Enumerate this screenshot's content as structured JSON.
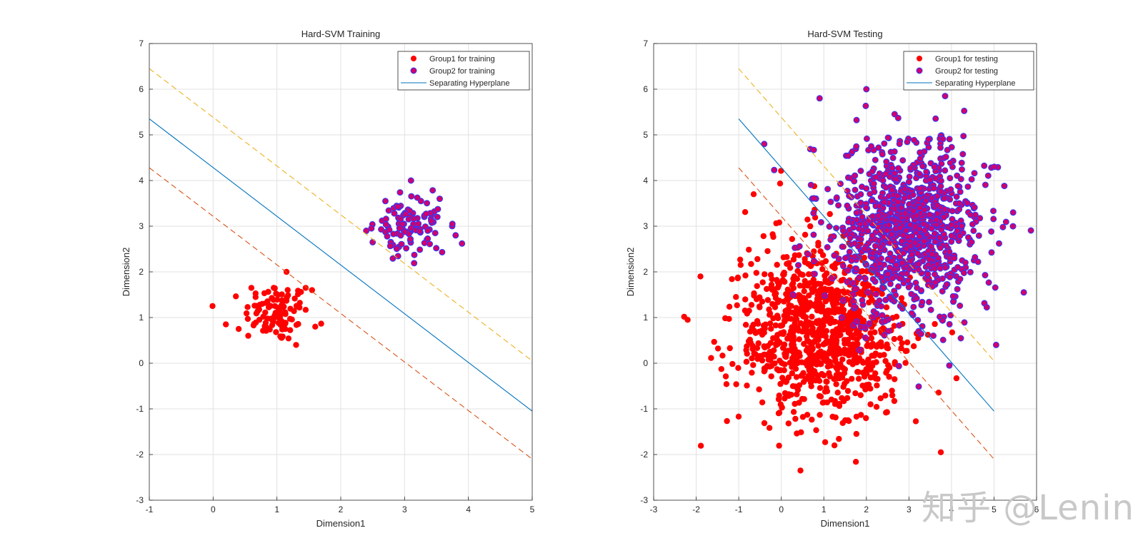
{
  "watermark": "知乎 @Lenin",
  "colors": {
    "group1": "#ff0000",
    "group2_fill": "#d1006e",
    "group2_edge": "#2a3cff",
    "hyperplane": "#0072bd",
    "margin_upper": "#edb120",
    "margin_lower": "#d95319",
    "grid": "#e1e1e1",
    "axis": "#262626"
  },
  "chart_data": [
    {
      "type": "scatter",
      "title": "Hard-SVM Training",
      "xlabel": "Dimension1",
      "ylabel": "Dimension2",
      "xlim": [
        -1,
        5
      ],
      "ylim": [
        -3,
        7
      ],
      "xticks": [
        -1,
        0,
        1,
        2,
        3,
        4,
        5
      ],
      "yticks": [
        -3,
        -2,
        -1,
        0,
        1,
        2,
        3,
        4,
        5,
        6,
        7
      ],
      "grid": true,
      "legend_position": "top-right",
      "legend": [
        "Group1 for training",
        "Group2 for training",
        "Separating Hyperplane"
      ],
      "series": [
        {
          "name": "Group1 for training",
          "kind": "points",
          "center": [
            1.0,
            1.1
          ],
          "spread": [
            0.25,
            0.32
          ],
          "count": 100,
          "extra_points": [
            [
              0.2,
              0.85
            ],
            [
              0.4,
              0.75
            ],
            [
              0.6,
              1.65
            ],
            [
              1.15,
              2.0
            ],
            [
              1.3,
              0.4
            ],
            [
              1.55,
              1.6
            ],
            [
              1.6,
              0.8
            ],
            [
              0.55,
              0.6
            ],
            [
              1.45,
              1.65
            ],
            [
              0.95,
              1.65
            ]
          ]
        },
        {
          "name": "Group2 for training",
          "kind": "points",
          "center": [
            3.05,
            2.95
          ],
          "spread": [
            0.22,
            0.32
          ],
          "count": 100,
          "extra_points": [
            [
              2.4,
              2.9
            ],
            [
              2.7,
              3.55
            ],
            [
              3.1,
              4.0
            ],
            [
              3.75,
              3.05
            ],
            [
              3.8,
              2.8
            ],
            [
              3.9,
              2.62
            ],
            [
              2.5,
              2.65
            ],
            [
              3.55,
              3.6
            ]
          ]
        },
        {
          "name": "Separating Hyperplane",
          "kind": "line",
          "style": "solid",
          "x": [
            -1,
            5
          ],
          "y": [
            5.35,
            -1.05
          ]
        },
        {
          "name": "Upper margin",
          "kind": "line",
          "style": "dashed",
          "x": [
            -1,
            5
          ],
          "y": [
            6.45,
            0.05
          ]
        },
        {
          "name": "Lower margin",
          "kind": "line",
          "style": "dashed",
          "x": [
            -1,
            5
          ],
          "y": [
            4.28,
            -2.1
          ]
        }
      ]
    },
    {
      "type": "scatter",
      "title": "Hard-SVM Testing",
      "xlabel": "Dimension1",
      "ylabel": "Dimension2",
      "xlim": [
        -3,
        6
      ],
      "ylim": [
        -3,
        7
      ],
      "xticks": [
        -3,
        -2,
        -1,
        0,
        1,
        2,
        3,
        4,
        5,
        6
      ],
      "yticks": [
        -3,
        -2,
        -1,
        0,
        1,
        2,
        3,
        4,
        5,
        6,
        7
      ],
      "grid": true,
      "legend_position": "top-right",
      "legend": [
        "Group1 for testing",
        "Group2 for testing",
        "Separating Hyperplane"
      ],
      "series": [
        {
          "name": "Group1 for testing",
          "kind": "points",
          "center": [
            0.9,
            0.75
          ],
          "spread": [
            0.95,
            0.95
          ],
          "count": 1000,
          "extra_points": [
            [
              0.45,
              -2.35
            ],
            [
              1.25,
              -1.8
            ],
            [
              -2.2,
              0.95
            ],
            [
              3.75,
              -1.95
            ],
            [
              -1.9,
              1.9
            ],
            [
              -0.65,
              3.7
            ]
          ]
        },
        {
          "name": "Group2 for testing",
          "kind": "points",
          "center": [
            3.0,
            3.0
          ],
          "spread": [
            0.85,
            0.95
          ],
          "count": 1000,
          "extra_points": [
            [
              -0.4,
              4.8
            ],
            [
              0.9,
              5.8
            ],
            [
              2.0,
              6.0
            ],
            [
              5.7,
              1.55
            ],
            [
              5.05,
              0.4
            ],
            [
              3.95,
              -0.05
            ],
            [
              3.85,
              5.85
            ],
            [
              5.45,
              3.3
            ]
          ]
        },
        {
          "name": "Separating Hyperplane",
          "kind": "line",
          "style": "solid",
          "x": [
            -1,
            5
          ],
          "y": [
            5.35,
            -1.05
          ]
        },
        {
          "name": "Upper margin",
          "kind": "line",
          "style": "dashed",
          "x": [
            -1,
            5
          ],
          "y": [
            6.45,
            0.05
          ]
        },
        {
          "name": "Lower margin",
          "kind": "line",
          "style": "dashed",
          "x": [
            -1,
            5
          ],
          "y": [
            4.28,
            -2.1
          ]
        }
      ]
    }
  ]
}
